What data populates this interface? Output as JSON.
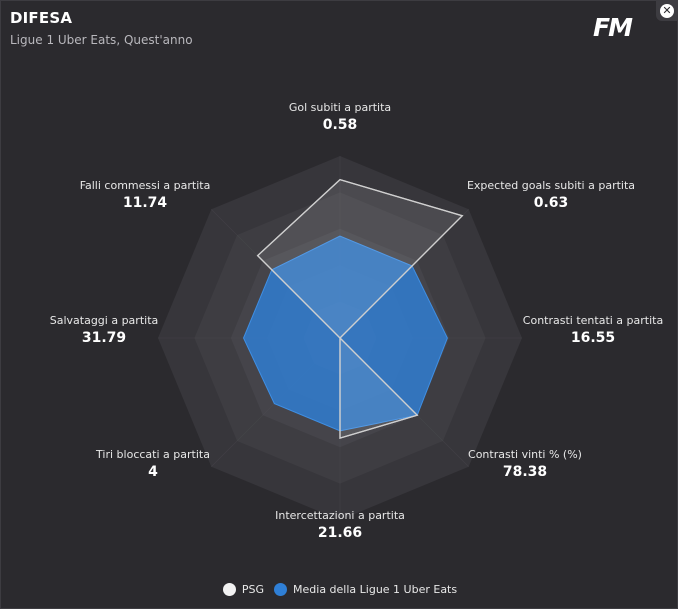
{
  "header": {
    "title": "DIFESA",
    "subtitle": "Ligue 1 Uber Eats, Quest'anno",
    "logo": "FM",
    "close_glyph": "✕"
  },
  "legend": {
    "items": [
      {
        "label": "PSG",
        "color": "#f2f2f2"
      },
      {
        "label": "Media della Ligue 1 Uber Eats",
        "color": "#2f7fd6"
      }
    ]
  },
  "chart_data": {
    "type": "radar",
    "title": "DIFESA",
    "subtitle": "Ligue 1 Uber Eats, Quest'anno",
    "axes": [
      {
        "label": "Gol subiti a partita",
        "value": "0.58"
      },
      {
        "label": "Expected goals subiti a partita",
        "value": "0.63"
      },
      {
        "label": "Contrasti tentati a partita",
        "value": "16.55"
      },
      {
        "label": "Contrasti vinti % (%)",
        "value": "78.38"
      },
      {
        "label": "Intercettazioni a partita",
        "value": "21.66"
      },
      {
        "label": "Tiri bloccati a partita",
        "value": "4"
      },
      {
        "label": "Salvataggi a partita",
        "value": "31.79"
      },
      {
        "label": "Falli commessi a partita",
        "value": "11.74"
      }
    ],
    "series": [
      {
        "name": "PSG",
        "color": "#ffffff",
        "values": [
          0.87,
          0.95,
          0.0,
          0.6,
          0.55,
          0.0,
          0.0,
          0.64
        ]
      },
      {
        "name": "Media della Ligue 1 Uber Eats",
        "color": "#2f7fd6",
        "values": [
          0.56,
          0.56,
          0.59,
          0.6,
          0.51,
          0.51,
          0.53,
          0.53
        ]
      }
    ],
    "rings": 5,
    "range": [
      0,
      1
    ]
  }
}
